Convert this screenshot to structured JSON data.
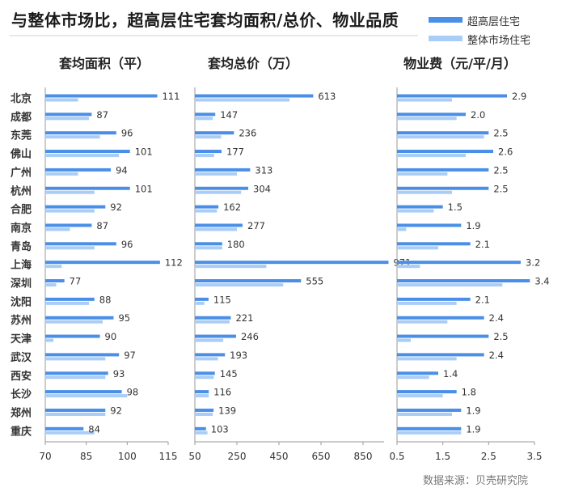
{
  "title": "与整体市场比，超高层住宅套均面积/总价、物业品质",
  "legend": [
    {
      "name": "超高层住宅",
      "color": "#4a8fe7"
    },
    {
      "name": "整体市场住宅",
      "color": "#a9cdf7"
    }
  ],
  "source": "数据来源：贝壳研究院",
  "chart_data": {
    "type": "bar",
    "orientation": "horizontal",
    "categories": [
      "北京",
      "成都",
      "东莞",
      "佛山",
      "广州",
      "杭州",
      "合肥",
      "南京",
      "青岛",
      "上海",
      "深圳",
      "沈阳",
      "苏州",
      "天津",
      "武汉",
      "西安",
      "长沙",
      "郑州",
      "重庆"
    ],
    "panels": [
      {
        "title": "套均面积（平）",
        "xlim": [
          70,
          115
        ],
        "ticks": [
          "70",
          "85",
          "100",
          "115"
        ],
        "series": [
          {
            "name": "超高层住宅",
            "values": [
              111,
              87,
              96,
              101,
              94,
              101,
              92,
              87,
              96,
              112,
              77,
              88,
              95,
              90,
              97,
              93,
              98,
              92,
              84
            ]
          },
          {
            "name": "整体市场住宅",
            "values": [
              82,
              86,
              90,
              97,
              82,
              88,
              88,
              79,
              88,
              76,
              74,
              86,
              91,
              73,
              92,
              92,
              100,
              92,
              88
            ]
          }
        ],
        "labels": [
          "111",
          "87",
          "96",
          "101",
          "94",
          "101",
          "92",
          "87",
          "96",
          "112",
          "77",
          "88",
          "95",
          "90",
          "97",
          "93",
          "98",
          "92",
          "84"
        ]
      },
      {
        "title": "套均总价（万）",
        "xlim": [
          50,
          950
        ],
        "ticks": [
          "50",
          "250",
          "450",
          "650",
          "850"
        ],
        "series": [
          {
            "name": "超高层住宅",
            "values": [
              613,
              147,
              236,
              177,
              313,
              304,
              162,
              277,
              180,
              971,
              555,
              115,
              221,
              246,
              193,
              145,
              116,
              139,
              103
            ]
          },
          {
            "name": "整体市场住宅",
            "values": [
              500,
              135,
              175,
              142,
              250,
              270,
              155,
              250,
              180,
              390,
              470,
              95,
              215,
              185,
              160,
              140,
              116,
              135,
              110
            ]
          }
        ],
        "labels": [
          "613",
          "147",
          "236",
          "177",
          "313",
          "304",
          "162",
          "277",
          "180",
          "971",
          "555",
          "115",
          "221",
          "246",
          "193",
          "145",
          "116",
          "139",
          "103"
        ]
      },
      {
        "title": "物业费（元/平/月）",
        "xlim": [
          0.5,
          3.5
        ],
        "ticks": [
          "0.5",
          "1.5",
          "2.5",
          "3.5"
        ],
        "series": [
          {
            "name": "超高层住宅",
            "values": [
              2.9,
              2.0,
              2.5,
              2.6,
              2.5,
              2.5,
              1.5,
              1.9,
              2.1,
              3.2,
              3.4,
              2.1,
              2.4,
              2.5,
              2.4,
              1.4,
              1.8,
              1.9,
              1.9
            ]
          },
          {
            "name": "整体市场住宅",
            "values": [
              1.7,
              1.8,
              2.4,
              2.0,
              1.6,
              1.7,
              1.3,
              0.7,
              1.4,
              1.0,
              2.8,
              1.8,
              1.6,
              0.8,
              1.8,
              1.2,
              1.5,
              1.7,
              1.9
            ]
          }
        ],
        "labels": [
          "2.9",
          "2.0",
          "2.5",
          "2.6",
          "2.5",
          "2.5",
          "1.5",
          "1.9",
          "2.1",
          "3.2",
          "3.4",
          "2.1",
          "2.4",
          "2.5",
          "2.4",
          "1.4",
          "1.8",
          "1.9",
          "1.9"
        ]
      }
    ]
  }
}
